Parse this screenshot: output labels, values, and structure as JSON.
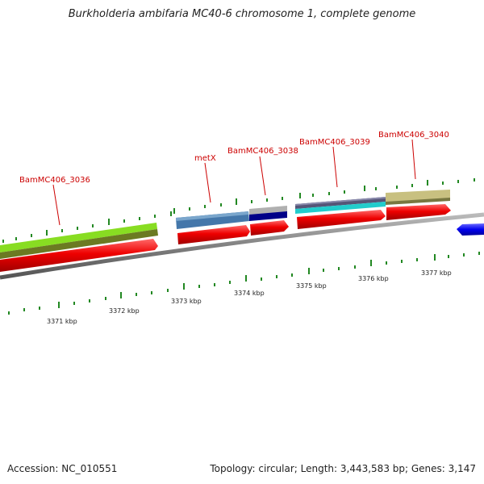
{
  "title": "Burkholderia ambifaria MC40-6 chromosome 1, complete genome",
  "footer": {
    "accession": "Accession: NC_010551",
    "summary": "Topology: circular; Length: 3,443,583 bp; Genes: 3,147"
  },
  "gene_labels": {
    "g3036": "BamMC406_3036",
    "metx": "metX",
    "g3038": "BamMC406_3038",
    "g3039": "BamMC406_3039",
    "g3040": "BamMC406_3040"
  },
  "ticks": {
    "t3371": "3371 kbp",
    "t3372": "3372 kbp",
    "t3373": "3373 kbp",
    "t3374": "3374 kbp",
    "t3375": "3375 kbp",
    "t3376": "3376 kbp",
    "t3377": "3377 kbp"
  },
  "colors": {
    "gene_arrow": "#ee0000",
    "reverse_gene": "#0000ee",
    "tick": "#228822",
    "backbone": "#808080",
    "cog_lime": "#88dd22",
    "cog_steelblue": "#4477aa",
    "cog_navy": "#000088",
    "cog_cyan": "#22cccc",
    "cog_slate": "#555577",
    "cog_khaki": "#c8c080"
  }
}
